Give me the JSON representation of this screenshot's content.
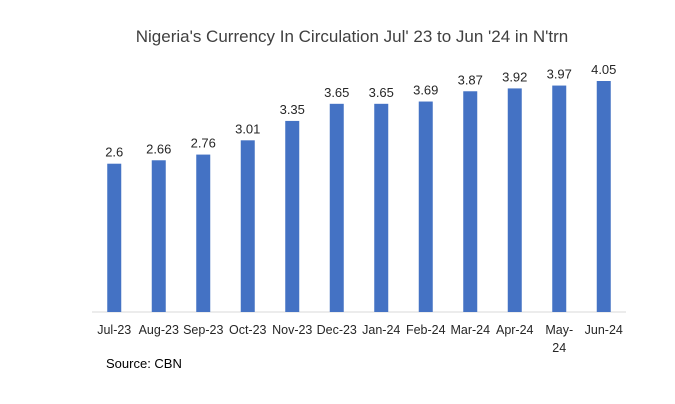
{
  "chart_data": {
    "type": "bar",
    "title": "Nigeria's Currency In Circulation Jul' 23 to Jun '24 in N'trn",
    "categories": [
      "Jul-23",
      "Aug-23",
      "Sep-23",
      "Oct-23",
      "Nov-23",
      "Dec-23",
      "Jan-24",
      "Feb-24",
      "Mar-24",
      "Apr-24",
      "May-24",
      "Jun-24"
    ],
    "values": [
      2.6,
      2.66,
      2.76,
      3.01,
      3.35,
      3.65,
      3.65,
      3.69,
      3.87,
      3.92,
      3.97,
      4.05
    ],
    "data_labels": [
      "2.6",
      "2.66",
      "2.76",
      "3.01",
      "3.35",
      "3.65",
      "3.65",
      "3.69",
      "3.87",
      "3.92",
      "3.97",
      "4.05"
    ],
    "xlabel": "",
    "ylabel": "",
    "ylim": [
      0,
      4.05
    ],
    "grid": false,
    "legend": "none",
    "bar_color": "#4472C4",
    "source": "Source: CBN"
  }
}
